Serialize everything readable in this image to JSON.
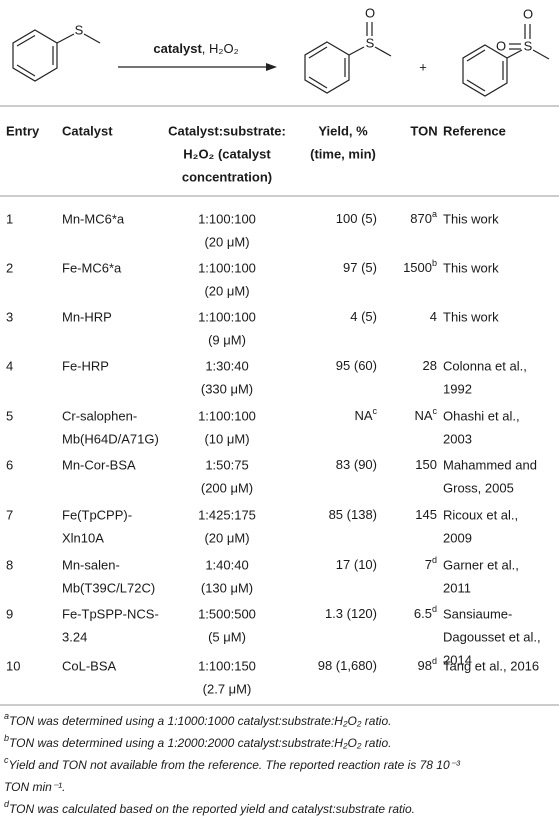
{
  "scheme": {
    "reactant_atom": "S",
    "reagent_catalyst": "catalyst",
    "reagent_rest": ", H₂O₂",
    "product1_atoms": [
      "S",
      "O"
    ],
    "plus": "+",
    "product2_atoms": [
      "S",
      "O",
      "O"
    ]
  },
  "table": {
    "header": [
      [
        "Entry"
      ],
      [
        "Catalyst"
      ],
      [
        "Catalyst:substrate:",
        "H₂O₂ (catalyst",
        "concentration)"
      ],
      [
        "Yield, %",
        "(time, min)"
      ],
      [
        "TON"
      ],
      [
        "Reference"
      ]
    ],
    "rows": [
      {
        "entry": "1",
        "catalyst": [
          "Mn-MC6*a"
        ],
        "ratio": [
          "1:100:100",
          "(20 μM)"
        ],
        "yield": "100 (5)",
        "ton": "870",
        "ton_note": "a",
        "reference": {
          "lines": [
            "This work"
          ],
          "color": "#1a1a1a"
        }
      },
      {
        "entry": "2",
        "catalyst": [
          "Fe-MC6*a"
        ],
        "ratio": [
          "1:100:100",
          "(20 μM)"
        ],
        "yield": "97 (5)",
        "ton": "1500",
        "ton_note": "b",
        "reference": {
          "lines": [
            "This work"
          ],
          "color": "#1a1a1a"
        }
      },
      {
        "entry": "3",
        "catalyst": [
          "Mn-HRP"
        ],
        "ratio": [
          "1:100:100",
          "(9 μM)"
        ],
        "yield": "4 (5)",
        "ton": "4",
        "reference": {
          "lines": [
            "This work"
          ],
          "color": "#1a1a1a"
        }
      },
      {
        "entry": "4",
        "catalyst": [
          "Fe-HRP"
        ],
        "ratio": [
          "1:30:40",
          "(330 μM)"
        ],
        "yield": "95 (60)",
        "ton": "28",
        "reference": {
          "lines": [
            "Colonna et al.,",
            "1992"
          ],
          "color": "#808080"
        }
      },
      {
        "entry": "5",
        "catalyst": [
          "Cr-salophen-",
          "Mb(H64D/A71G)"
        ],
        "ratio": [
          "1:100:100",
          "(10 μM)"
        ],
        "yield": "NA",
        "yield_note": "c",
        "ton": "NA",
        "ton_note": "c",
        "reference": {
          "lines": [
            "Ohashi et al.,",
            "2003"
          ],
          "color": "#808080"
        }
      },
      {
        "entry": "6",
        "catalyst": [
          "Mn-Cor-BSA"
        ],
        "ratio": [
          "1:50:75",
          "(200 μM)"
        ],
        "yield": "83 (90)",
        "ton": "150",
        "reference": {
          "lines": [
            "Mahammed and",
            "Gross, 2005"
          ],
          "color": "#808080"
        }
      },
      {
        "entry": "7",
        "catalyst": [
          "Fe(TpCPP)-",
          "Xln10A"
        ],
        "ratio": [
          "1:425:175",
          "(20 μM)"
        ],
        "yield": "85 (138)",
        "ton": "145",
        "reference": {
          "lines": [
            "Ricoux et al.,",
            "2009"
          ],
          "color": "#808080"
        }
      },
      {
        "entry": "8",
        "catalyst": [
          "Mn-salen-",
          "Mb(T39C/L72C)"
        ],
        "ratio": [
          "1:40:40",
          "(130 μM)"
        ],
        "yield": "17 (10)",
        "ton": "7",
        "ton_note": "d",
        "reference": {
          "lines": [
            "Garner et al.,",
            "2011"
          ],
          "color": "#808080"
        }
      },
      {
        "entry": "9",
        "catalyst": [
          "Fe-TpSPP-NCS-",
          "3.24"
        ],
        "ratio": [
          "1:500:500",
          "(5 μM)"
        ],
        "yield": "1.3 (120)",
        "ton": "6.5",
        "ton_note": "d",
        "reference": {
          "lines": [
            "Sansiaume-",
            "Dagousset et al.,",
            "2014"
          ],
          "color": "#808080"
        }
      },
      {
        "entry": "10",
        "catalyst": [
          "CoL-BSA"
        ],
        "ratio": [
          "1:100:150",
          "(2.7 μM)"
        ],
        "yield": "98 (1,680)",
        "ton": "98",
        "ton_note": "d",
        "reference": {
          "lines": [
            "Tang et al., 2016"
          ],
          "color": "#808080"
        }
      }
    ]
  },
  "footnotes": [
    {
      "mark": "a",
      "lines": [
        "TON was determined using a 1:1000:1000 catalyst:substrate:H₂O₂ ratio."
      ]
    },
    {
      "mark": "b",
      "lines": [
        "TON was determined using a 1:2000:2000 catalyst:substrate:H₂O₂ ratio."
      ]
    },
    {
      "mark": "c",
      "lines": [
        "Yield and TON not available from the reference. The reported reaction rate is 78 10⁻³",
        "TON min⁻¹."
      ]
    },
    {
      "mark": "d",
      "lines": [
        "TON was calculated based on the reported yield and catalyst:substrate ratio."
      ]
    }
  ]
}
